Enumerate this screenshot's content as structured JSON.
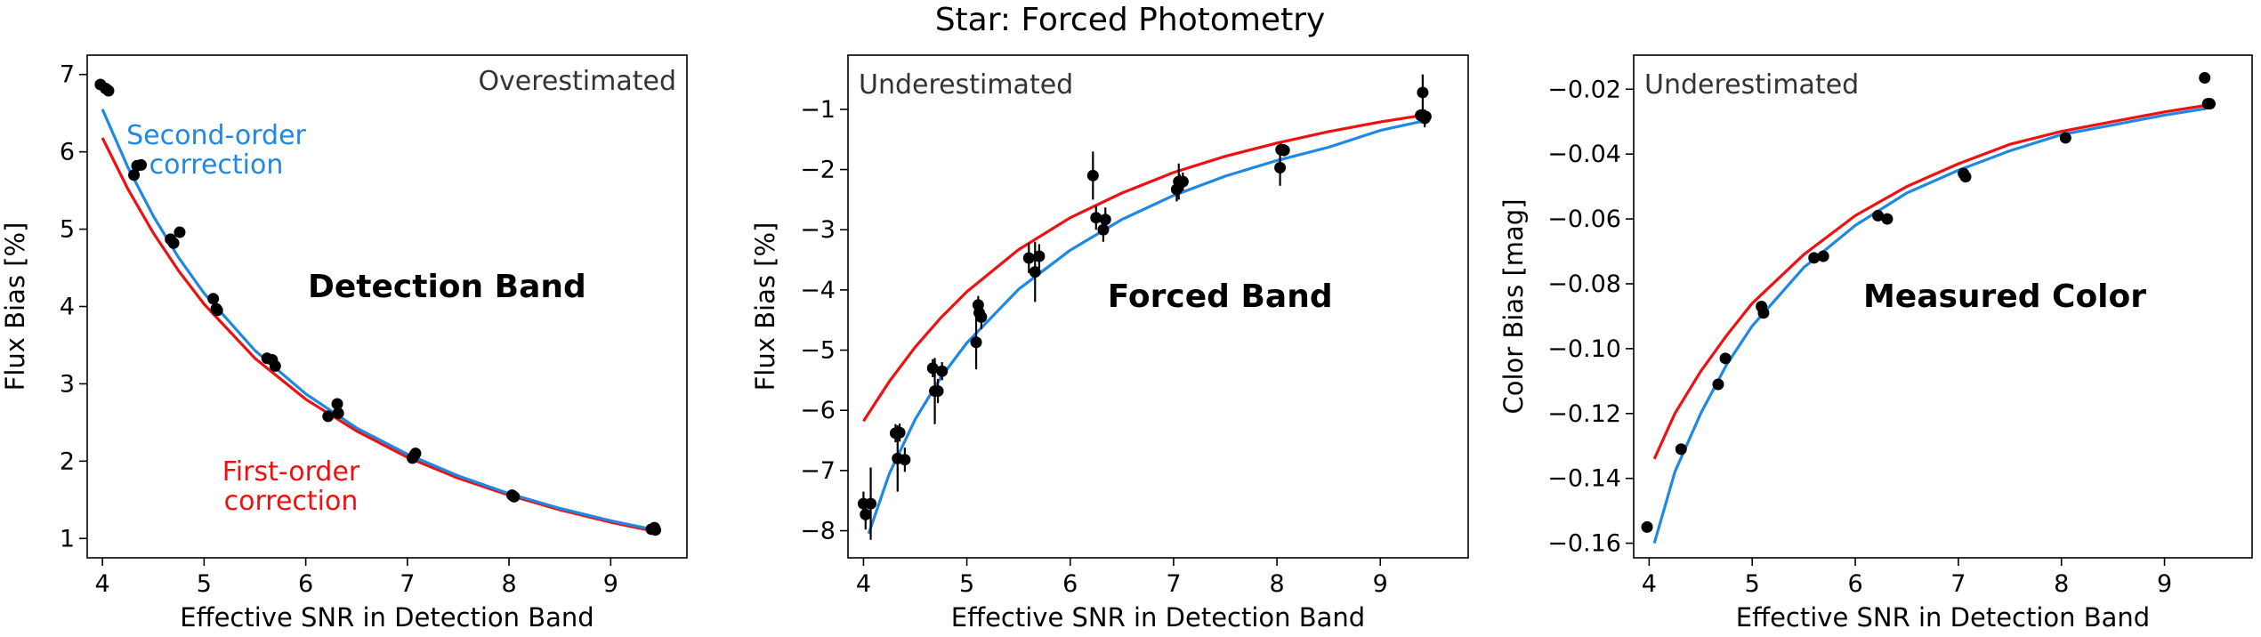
{
  "figure": {
    "suptitle": "Star: Forced Photometry"
  },
  "colors": {
    "first_order": "#ee1111",
    "second_order": "#1e88e5",
    "points": "#000000",
    "axes": "#000000",
    "annotation": "#333333"
  },
  "chart_data": [
    {
      "type": "scatter",
      "panel": "left",
      "xlabel": "Effective SNR in Detection Band",
      "ylabel": "Flux Bias [%]",
      "xlim": [
        3.85,
        9.75
      ],
      "ylim": [
        0.75,
        7.25
      ],
      "xticks": [
        4,
        5,
        6,
        7,
        8,
        9
      ],
      "yticks": [
        1,
        2,
        3,
        4,
        5,
        6,
        7
      ],
      "corner_label": "Overestimated",
      "band_label": "Detection Band",
      "curve_labels": {
        "second_order": "Second-order\ncorrection",
        "first_order": "First-order\ncorrection"
      },
      "curves": {
        "first_order": {
          "x": [
            4.0,
            4.25,
            4.5,
            4.75,
            5.0,
            5.5,
            6.0,
            6.5,
            7.0,
            7.5,
            8.0,
            8.5,
            9.0,
            9.4
          ],
          "y": [
            6.18,
            5.52,
            4.95,
            4.46,
            4.03,
            3.33,
            2.8,
            2.39,
            2.05,
            1.78,
            1.56,
            1.37,
            1.21,
            1.1
          ]
        },
        "second_order": {
          "x": [
            4.0,
            4.25,
            4.5,
            4.75,
            5.0,
            5.5,
            6.0,
            6.5,
            7.0,
            7.5,
            8.0,
            8.5,
            9.0,
            9.4
          ],
          "y": [
            6.55,
            5.8,
            5.17,
            4.63,
            4.17,
            3.43,
            2.87,
            2.43,
            2.09,
            1.81,
            1.58,
            1.39,
            1.23,
            1.12
          ]
        }
      },
      "points": [
        {
          "x": 3.98,
          "y": 6.87,
          "err": 0.04
        },
        {
          "x": 4.03,
          "y": 6.82,
          "err": 0.04
        },
        {
          "x": 4.06,
          "y": 6.79,
          "err": 0.04
        },
        {
          "x": 4.31,
          "y": 5.7,
          "err": 0.05
        },
        {
          "x": 4.34,
          "y": 5.82,
          "err": 0.05
        },
        {
          "x": 4.38,
          "y": 5.83,
          "err": 0.04
        },
        {
          "x": 4.67,
          "y": 4.87,
          "err": 0.05
        },
        {
          "x": 4.7,
          "y": 4.82,
          "err": 0.05
        },
        {
          "x": 4.76,
          "y": 4.96,
          "err": 0.04
        },
        {
          "x": 5.09,
          "y": 4.1,
          "err": 0.04
        },
        {
          "x": 5.12,
          "y": 3.97,
          "err": 0.05
        },
        {
          "x": 5.13,
          "y": 3.95,
          "err": 0.04
        },
        {
          "x": 5.62,
          "y": 3.33,
          "err": 0.04
        },
        {
          "x": 5.67,
          "y": 3.31,
          "err": 0.04
        },
        {
          "x": 5.7,
          "y": 3.23,
          "err": 0.04
        },
        {
          "x": 6.22,
          "y": 2.58,
          "err": 0.03
        },
        {
          "x": 6.31,
          "y": 2.74,
          "err": 0.03
        },
        {
          "x": 6.32,
          "y": 2.62,
          "err": 0.03
        },
        {
          "x": 7.05,
          "y": 2.04,
          "err": 0.03
        },
        {
          "x": 7.07,
          "y": 2.08,
          "err": 0.03
        },
        {
          "x": 7.08,
          "y": 2.1,
          "err": 0.03
        },
        {
          "x": 8.03,
          "y": 1.56,
          "err": 0.02
        },
        {
          "x": 8.05,
          "y": 1.54,
          "err": 0.02
        },
        {
          "x": 9.4,
          "y": 1.12,
          "err": 0.02
        },
        {
          "x": 9.43,
          "y": 1.14,
          "err": 0.02
        },
        {
          "x": 9.44,
          "y": 1.11,
          "err": 0.02
        }
      ]
    },
    {
      "type": "scatter",
      "panel": "middle",
      "xlabel": "Effective SNR in Detection Band",
      "ylabel": "Flux Bias [%]",
      "xlim": [
        3.85,
        9.85
      ],
      "ylim": [
        -8.45,
        -0.1
      ],
      "xticks": [
        4,
        5,
        6,
        7,
        8,
        9
      ],
      "yticks": [
        -8,
        -7,
        -6,
        -5,
        -4,
        -3,
        -2,
        -1
      ],
      "corner_label": "Underestimated",
      "band_label": "Forced Band",
      "curves": {
        "first_order": {
          "x": [
            4.0,
            4.25,
            4.5,
            4.75,
            5.0,
            5.5,
            6.0,
            6.5,
            7.0,
            7.5,
            8.0,
            8.5,
            9.0,
            9.4
          ],
          "y": [
            -6.18,
            -5.52,
            -4.95,
            -4.46,
            -4.03,
            -3.33,
            -2.8,
            -2.39,
            -2.05,
            -1.78,
            -1.56,
            -1.37,
            -1.21,
            -1.1
          ]
        },
        "second_order": {
          "x": [
            4.05,
            4.25,
            4.5,
            4.75,
            5.0,
            5.5,
            6.0,
            6.5,
            7.0,
            7.5,
            8.0,
            8.5,
            9.0,
            9.4
          ],
          "y": [
            -8.05,
            -7.05,
            -6.15,
            -5.45,
            -4.88,
            -3.99,
            -3.34,
            -2.83,
            -2.43,
            -2.11,
            -1.85,
            -1.63,
            -1.35,
            -1.2
          ]
        }
      },
      "points": [
        {
          "x": 4.0,
          "y": -7.55,
          "err": 0.2
        },
        {
          "x": 4.02,
          "y": -7.73,
          "err": 0.25
        },
        {
          "x": 4.07,
          "y": -7.55,
          "err": 0.6
        },
        {
          "x": 4.31,
          "y": -6.38,
          "err": 0.15
        },
        {
          "x": 4.33,
          "y": -6.8,
          "err": 0.55
        },
        {
          "x": 4.35,
          "y": -6.37,
          "err": 0.15
        },
        {
          "x": 4.4,
          "y": -6.82,
          "err": 0.2
        },
        {
          "x": 4.67,
          "y": -5.3,
          "err": 0.15
        },
        {
          "x": 4.69,
          "y": -5.68,
          "err": 0.55
        },
        {
          "x": 4.72,
          "y": -5.68,
          "err": 0.2
        },
        {
          "x": 4.76,
          "y": -5.35,
          "err": 0.15
        },
        {
          "x": 5.09,
          "y": -4.87,
          "err": 0.45
        },
        {
          "x": 5.11,
          "y": -4.25,
          "err": 0.15
        },
        {
          "x": 5.12,
          "y": -4.38,
          "err": 0.15
        },
        {
          "x": 5.14,
          "y": -4.45,
          "err": 0.2
        },
        {
          "x": 5.6,
          "y": -3.47,
          "err": 0.25
        },
        {
          "x": 5.66,
          "y": -3.7,
          "err": 0.5
        },
        {
          "x": 5.7,
          "y": -3.44,
          "err": 0.2
        },
        {
          "x": 6.22,
          "y": -2.1,
          "err": 0.4
        },
        {
          "x": 6.25,
          "y": -2.8,
          "err": 0.2
        },
        {
          "x": 6.32,
          "y": -3.0,
          "err": 0.2
        },
        {
          "x": 6.34,
          "y": -2.83,
          "err": 0.2
        },
        {
          "x": 7.03,
          "y": -2.33,
          "err": 0.2
        },
        {
          "x": 7.05,
          "y": -2.2,
          "err": 0.3
        },
        {
          "x": 7.06,
          "y": -2.23,
          "err": 0.15
        },
        {
          "x": 7.09,
          "y": -2.2,
          "err": 0.15
        },
        {
          "x": 8.03,
          "y": -1.97,
          "err": 0.3
        },
        {
          "x": 8.04,
          "y": -1.67,
          "err": 0.1
        },
        {
          "x": 8.07,
          "y": -1.68,
          "err": 0.1
        },
        {
          "x": 9.39,
          "y": -1.1,
          "err": 0.1
        },
        {
          "x": 9.41,
          "y": -0.72,
          "err": 0.3
        },
        {
          "x": 9.43,
          "y": -1.15,
          "err": 0.15
        },
        {
          "x": 9.44,
          "y": -1.12,
          "err": 0.1
        }
      ]
    },
    {
      "type": "scatter",
      "panel": "right",
      "xlabel": "Effective SNR in Detection Band",
      "ylabel": "Color Bias [mag]",
      "xlim": [
        3.85,
        9.85
      ],
      "ylim": [
        -0.1645,
        -0.0095
      ],
      "xticks": [
        4,
        5,
        6,
        7,
        8,
        9
      ],
      "yticks": [
        -0.16,
        -0.14,
        -0.12,
        -0.1,
        -0.08,
        -0.06,
        -0.04,
        -0.02
      ],
      "ytick_labels": [
        "−0.16",
        "−0.14",
        "−0.12",
        "−0.10",
        "−0.08",
        "−0.06",
        "−0.04",
        "−0.02"
      ],
      "corner_label": "Underestimated",
      "band_label": "Measured Color",
      "curves": {
        "first_order": {
          "x": [
            4.05,
            4.25,
            4.5,
            4.75,
            5.0,
            5.5,
            6.0,
            6.5,
            7.0,
            7.5,
            8.0,
            8.5,
            9.0,
            9.4
          ],
          "y": [
            -0.134,
            -0.12,
            -0.107,
            -0.096,
            -0.086,
            -0.071,
            -0.059,
            -0.05,
            -0.043,
            -0.037,
            -0.033,
            -0.03,
            -0.027,
            -0.025
          ]
        },
        "second_order": {
          "x": [
            4.05,
            4.25,
            4.5,
            4.75,
            5.0,
            5.5,
            6.0,
            6.5,
            7.0,
            7.5,
            8.0,
            8.5,
            9.0,
            9.4
          ],
          "y": [
            -0.16,
            -0.138,
            -0.12,
            -0.105,
            -0.093,
            -0.075,
            -0.062,
            -0.052,
            -0.045,
            -0.039,
            -0.034,
            -0.031,
            -0.028,
            -0.026
          ]
        }
      },
      "points": [
        {
          "x": 3.98,
          "y": -0.155,
          "err": 0.001
        },
        {
          "x": 4.31,
          "y": -0.131,
          "err": 0.001
        },
        {
          "x": 4.67,
          "y": -0.111,
          "err": 0.001
        },
        {
          "x": 4.74,
          "y": -0.103,
          "err": 0.001
        },
        {
          "x": 5.09,
          "y": -0.087,
          "err": 0.001
        },
        {
          "x": 5.11,
          "y": -0.089,
          "err": 0.001
        },
        {
          "x": 5.6,
          "y": -0.072,
          "err": 0.001
        },
        {
          "x": 5.69,
          "y": -0.0715,
          "err": 0.001
        },
        {
          "x": 6.22,
          "y": -0.059,
          "err": 0.001
        },
        {
          "x": 6.31,
          "y": -0.06,
          "err": 0.001
        },
        {
          "x": 7.05,
          "y": -0.046,
          "err": 0.001
        },
        {
          "x": 7.07,
          "y": -0.047,
          "err": 0.001
        },
        {
          "x": 8.04,
          "y": -0.035,
          "err": 0.001
        },
        {
          "x": 9.39,
          "y": -0.0165,
          "err": 0.001
        },
        {
          "x": 9.42,
          "y": -0.0245,
          "err": 0.001
        },
        {
          "x": 9.44,
          "y": -0.0245,
          "err": 0.001
        }
      ]
    }
  ]
}
